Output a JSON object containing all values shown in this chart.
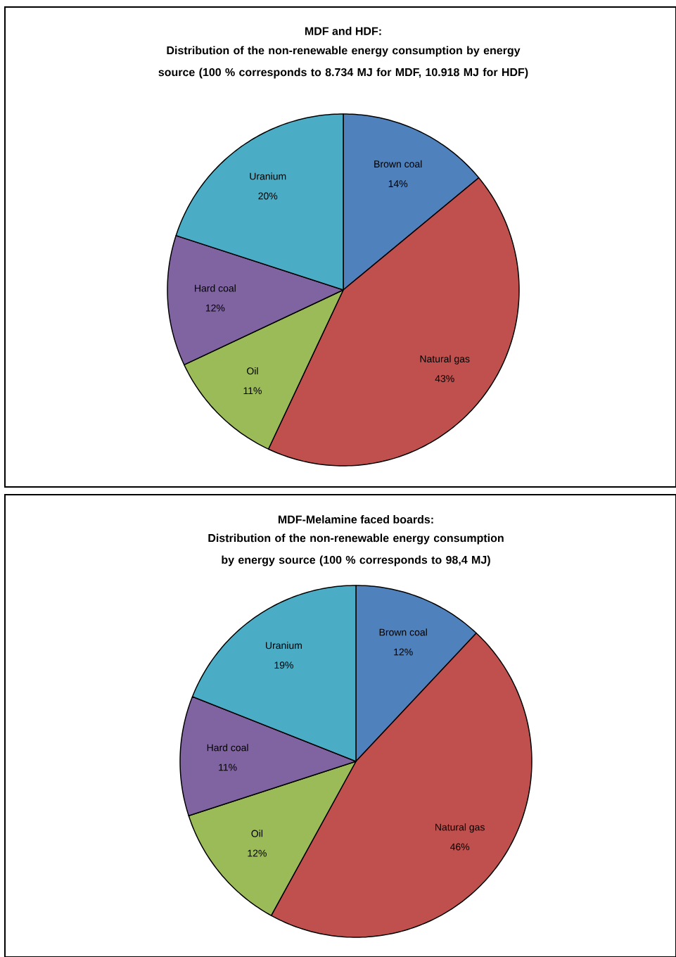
{
  "chart_data": [
    {
      "type": "pie",
      "title": "MDF and HDF:",
      "subtitle": "Distribution of the non-renewable energy consumption by energy source  (100 % corresponds to 8.734  MJ for MDF, 10.918  MJ for HDF)",
      "categories": [
        "Brown coal",
        "Natural gas",
        "Oil",
        "Hard coal",
        "Uranium"
      ],
      "values": [
        14,
        43,
        11,
        12,
        20
      ],
      "colors": [
        "#4f81bd",
        "#c0504d",
        "#9bbb59",
        "#8064a2",
        "#4bacc6"
      ],
      "value_labels": [
        "14%",
        "43%",
        "11%",
        "12%",
        "20%"
      ]
    },
    {
      "type": "pie",
      "title": "MDF-Melamine faced boards:",
      "subtitle": "Distribution of the non-renewable energy consumption by energy source  (100 % corresponds to  98,4  MJ)",
      "categories": [
        "Brown coal",
        "Natural gas",
        "Oil",
        "Hard coal",
        "Uranium"
      ],
      "values": [
        12,
        46,
        12,
        11,
        19
      ],
      "colors": [
        "#4f81bd",
        "#c0504d",
        "#9bbb59",
        "#8064a2",
        "#4bacc6"
      ],
      "value_labels": [
        "12%",
        "46%",
        "12%",
        "11%",
        "19%"
      ]
    }
  ]
}
